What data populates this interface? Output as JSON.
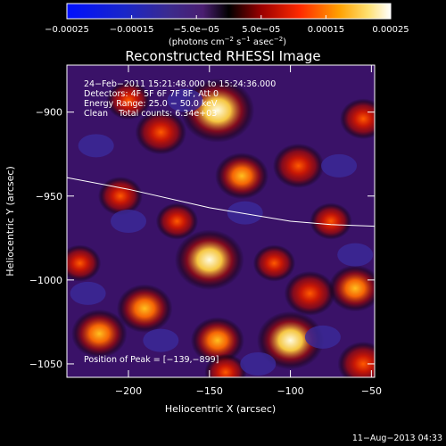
{
  "chart_data": {
    "type": "heatmap",
    "title": "Reconstructed RHESSI Image",
    "xlabel": "Heliocentric X (arcsec)",
    "ylabel": "Heliocentric Y (arcsec)",
    "xlim": [
      -238,
      -48
    ],
    "ylim": [
      -1058,
      -872
    ],
    "x_ticks": [
      -200,
      -150,
      -100,
      -50
    ],
    "x_tick_labels": [
      "−200",
      "−150",
      "−100",
      "−50"
    ],
    "y_ticks": [
      -900,
      -950,
      -1000,
      -1050
    ],
    "y_tick_labels": [
      "−900",
      "−950",
      "−1000",
      "−1050"
    ],
    "colorbar": {
      "range": [
        -0.00025,
        0.00025
      ],
      "tick_labels": [
        "−0.00025",
        "−0.00015",
        "−5.0e−05",
        "5.0e−05",
        "0.00015",
        "0.00025"
      ],
      "unit_text": "(photons cm",
      "unit_sup1": "−2",
      "unit_mid": " s",
      "unit_sup2": "−1",
      "unit_mid2": " asec",
      "unit_sup3": "−2",
      "unit_end": ")"
    },
    "annotations": {
      "line1": "24−Feb−2011 15:21:48.000 to 15:24:36.000",
      "line2": "Detectors: 4F 5F 6F 7F 8F, Att 0",
      "line3": "Energy Range: 25.0 − 50.0 keV",
      "line4": "Clean    Total counts: 6.34e+03",
      "peak": "Position of Peak = [−139,−899]"
    },
    "limb_curve": {
      "x": [
        -238,
        -200,
        -150,
        -100,
        -75,
        -48
      ],
      "y": [
        -939,
        -946,
        -957,
        -965,
        -967,
        -968
      ]
    },
    "sources": [
      {
        "x": -145,
        "y": -899,
        "intensity": 1.0
      },
      {
        "x": -150,
        "y": -988,
        "intensity": 0.9
      },
      {
        "x": -100,
        "y": -1036,
        "intensity": 0.85
      },
      {
        "x": -218,
        "y": -1032,
        "intensity": 0.6
      },
      {
        "x": -190,
        "y": -1017,
        "intensity": 0.6
      },
      {
        "x": -145,
        "y": -1036,
        "intensity": 0.55
      },
      {
        "x": -180,
        "y": -912,
        "intensity": 0.5
      },
      {
        "x": -130,
        "y": -938,
        "intensity": 0.55
      },
      {
        "x": -95,
        "y": -932,
        "intensity": 0.5
      },
      {
        "x": -88,
        "y": -1008,
        "intensity": 0.5
      },
      {
        "x": -60,
        "y": -1005,
        "intensity": 0.55
      },
      {
        "x": -55,
        "y": -1050,
        "intensity": 0.5
      },
      {
        "x": -55,
        "y": -904,
        "intensity": 0.4
      },
      {
        "x": -205,
        "y": -950,
        "intensity": 0.35
      },
      {
        "x": -170,
        "y": -965,
        "intensity": 0.3
      },
      {
        "x": -230,
        "y": -990,
        "intensity": 0.3
      },
      {
        "x": -110,
        "y": -990,
        "intensity": 0.3
      },
      {
        "x": -200,
        "y": -893,
        "intensity": 0.35
      },
      {
        "x": -140,
        "y": -1055,
        "intensity": 0.3
      },
      {
        "x": -75,
        "y": -965,
        "intensity": 0.3
      }
    ],
    "footer_timestamp": "11−Aug−2013 04:33"
  }
}
